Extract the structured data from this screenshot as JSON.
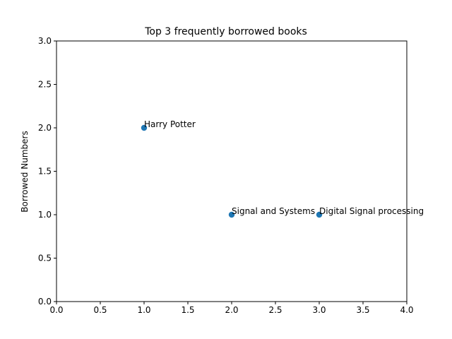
{
  "chart_data": {
    "type": "scatter",
    "title": "Top 3 frequently borrowed books",
    "xlabel": "",
    "ylabel": "Borrowed Numbers",
    "xlim": [
      0,
      4.0
    ],
    "ylim": [
      0,
      3.0
    ],
    "xticks": [
      0.0,
      0.5,
      1.0,
      1.5,
      2.0,
      2.5,
      3.0,
      3.5,
      4.0
    ],
    "yticks": [
      0.0,
      0.5,
      1.0,
      1.5,
      2.0,
      2.5,
      3.0
    ],
    "xtick_labels": [
      "0.0",
      "0.5",
      "1.0",
      "1.5",
      "2.0",
      "2.5",
      "3.0",
      "3.5",
      "4.0"
    ],
    "ytick_labels": [
      "0.0",
      "0.5",
      "1.0",
      "1.5",
      "2.0",
      "2.5",
      "3.0"
    ],
    "grid": false,
    "marker_color": "#1f77b4",
    "points": [
      {
        "x": 1,
        "y": 2,
        "label": "Harry Potter"
      },
      {
        "x": 2,
        "y": 1,
        "label": "Signal and Systems"
      },
      {
        "x": 3,
        "y": 1,
        "label": "Digital Signal processing"
      }
    ]
  }
}
